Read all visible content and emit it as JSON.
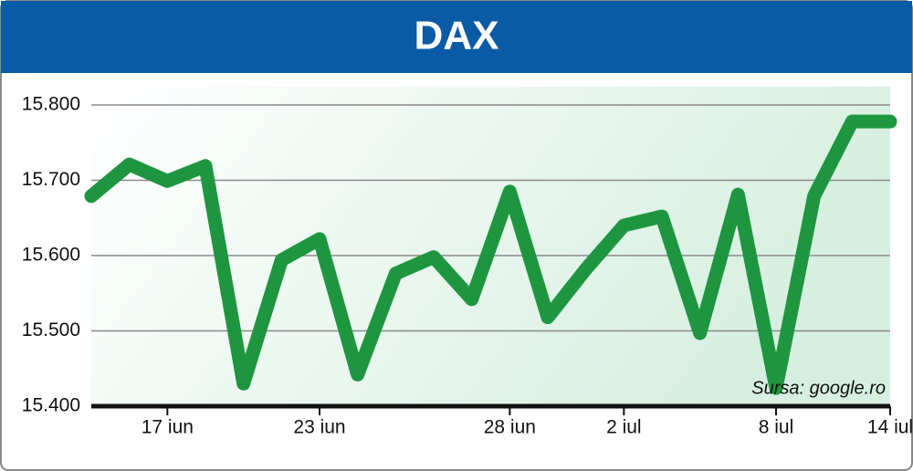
{
  "chart_data": {
    "type": "line",
    "title": "DAX",
    "source": "Sursa: google.ro",
    "categories": [
      null,
      null,
      "17 iun",
      null,
      null,
      null,
      "23 iun",
      null,
      null,
      null,
      null,
      "28 iun",
      null,
      null,
      "2 iul",
      null,
      null,
      null,
      "8 iul",
      null,
      null,
      "14 iul"
    ],
    "values": [
      15679,
      15721,
      15699,
      15719,
      15430,
      15594,
      15622,
      15442,
      15576,
      15598,
      15542,
      15685,
      15518,
      15582,
      15640,
      15652,
      15497,
      15681,
      15424,
      15679,
      15778,
      15778
    ],
    "color": "#1e9640",
    "ylim": [
      15400,
      15800
    ],
    "yticks": [
      {
        "value": 15400,
        "label": "15.400"
      },
      {
        "value": 15500,
        "label": "15.500"
      },
      {
        "value": 15600,
        "label": "15.600"
      },
      {
        "value": 15700,
        "label": "15.700"
      },
      {
        "value": 15800,
        "label": "15.800"
      }
    ],
    "grid": true
  }
}
